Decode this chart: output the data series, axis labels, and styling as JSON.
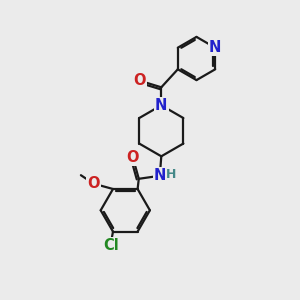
{
  "bg_color": "#ebebeb",
  "bond_color": "#1a1a1a",
  "N_color": "#2222cc",
  "O_color": "#cc2222",
  "Cl_color": "#228822",
  "H_color": "#448888",
  "line_width": 1.6,
  "font_size_atom": 10.5,
  "font_size_H": 9.0,
  "xlim": [
    0,
    10
  ],
  "ylim": [
    0,
    10
  ]
}
